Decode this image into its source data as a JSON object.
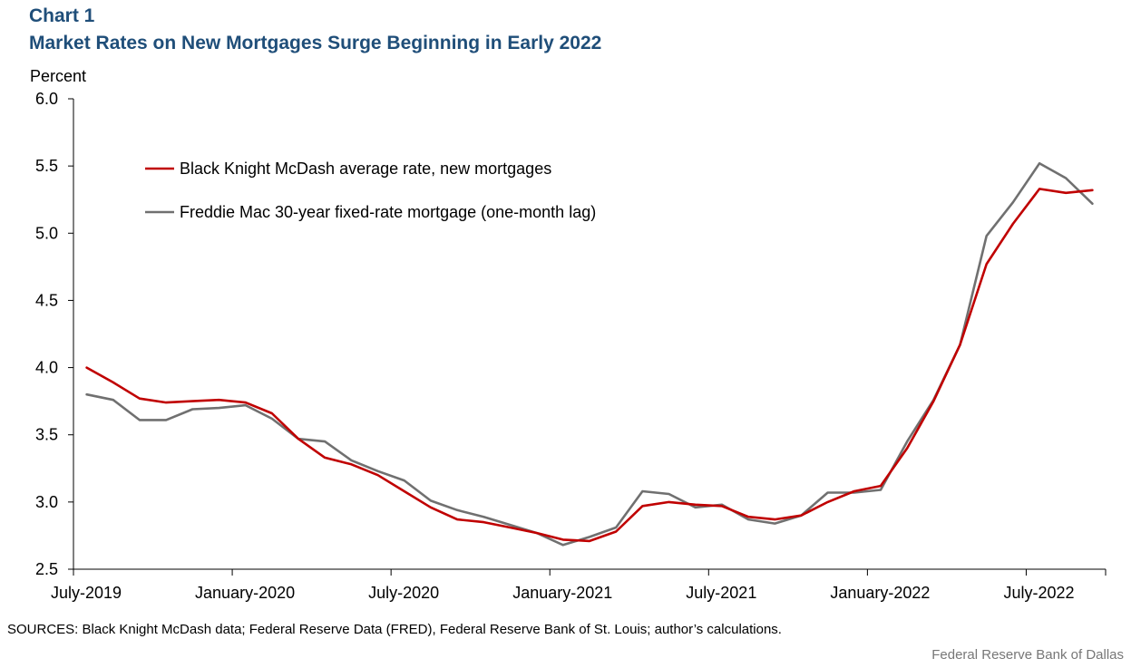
{
  "figure": {
    "label": "Chart 1",
    "title": "Market Rates on New Mortgages Surge Beginning in Early 2022",
    "ylabel": "Percent",
    "sources": "SOURCES: Black Knight McDash data; Federal Reserve Data (FRED), Federal Reserve Bank of St. Louis; author’s calculations.",
    "credit": "Federal Reserve  Bank of Dallas"
  },
  "chart_data": {
    "type": "line",
    "x": [
      "2019-07",
      "2019-08",
      "2019-09",
      "2019-10",
      "2019-11",
      "2019-12",
      "2020-01",
      "2020-02",
      "2020-03",
      "2020-04",
      "2020-05",
      "2020-06",
      "2020-07",
      "2020-08",
      "2020-09",
      "2020-10",
      "2020-11",
      "2020-12",
      "2021-01",
      "2021-02",
      "2021-03",
      "2021-04",
      "2021-05",
      "2021-06",
      "2021-07",
      "2021-08",
      "2021-09",
      "2021-10",
      "2021-11",
      "2021-12",
      "2022-01",
      "2022-02",
      "2022-03",
      "2022-04",
      "2022-05",
      "2022-06",
      "2022-07",
      "2022-08",
      "2022-09"
    ],
    "series": [
      {
        "name": "Black Knight McDash average rate, new mortgages",
        "color": "#c00000",
        "values": [
          4.0,
          3.89,
          3.77,
          3.74,
          3.75,
          3.76,
          3.74,
          3.66,
          3.47,
          3.33,
          3.28,
          3.2,
          3.08,
          2.96,
          2.87,
          2.85,
          2.81,
          2.77,
          2.72,
          2.71,
          2.78,
          2.97,
          3.0,
          2.98,
          2.97,
          2.89,
          2.87,
          2.9,
          3.0,
          3.08,
          3.12,
          3.4,
          3.75,
          4.17,
          4.77,
          5.07,
          5.33,
          5.3,
          5.32
        ]
      },
      {
        "name": "Freddie Mac 30-year fixed-rate mortgage (one-month lag)",
        "color": "#707070",
        "values": [
          3.8,
          3.76,
          3.61,
          3.61,
          3.69,
          3.7,
          3.72,
          3.62,
          3.47,
          3.45,
          3.31,
          3.23,
          3.16,
          3.01,
          2.94,
          2.89,
          2.83,
          2.77,
          2.68,
          2.74,
          2.81,
          3.08,
          3.06,
          2.96,
          2.98,
          2.87,
          2.84,
          2.9,
          3.07,
          3.07,
          3.09,
          3.45,
          3.76,
          4.17,
          4.98,
          5.23,
          5.52,
          5.41,
          5.22
        ]
      }
    ],
    "ylim": [
      2.5,
      6.0
    ],
    "yticks": [
      "6.0",
      "5.5",
      "5.0",
      "4.5",
      "4.0",
      "3.5",
      "3.0",
      "2.5"
    ],
    "xticks": [
      {
        "label": "July-2019",
        "month": "2019-07"
      },
      {
        "label": "January-2020",
        "month": "2020-01"
      },
      {
        "label": "July-2020",
        "month": "2020-07"
      },
      {
        "label": "January-2021",
        "month": "2021-01"
      },
      {
        "label": "July-2021",
        "month": "2021-07"
      },
      {
        "label": "January-2022",
        "month": "2022-01"
      },
      {
        "label": "July-2022",
        "month": "2022-07"
      }
    ],
    "grid": false,
    "legend": "top-left"
  }
}
